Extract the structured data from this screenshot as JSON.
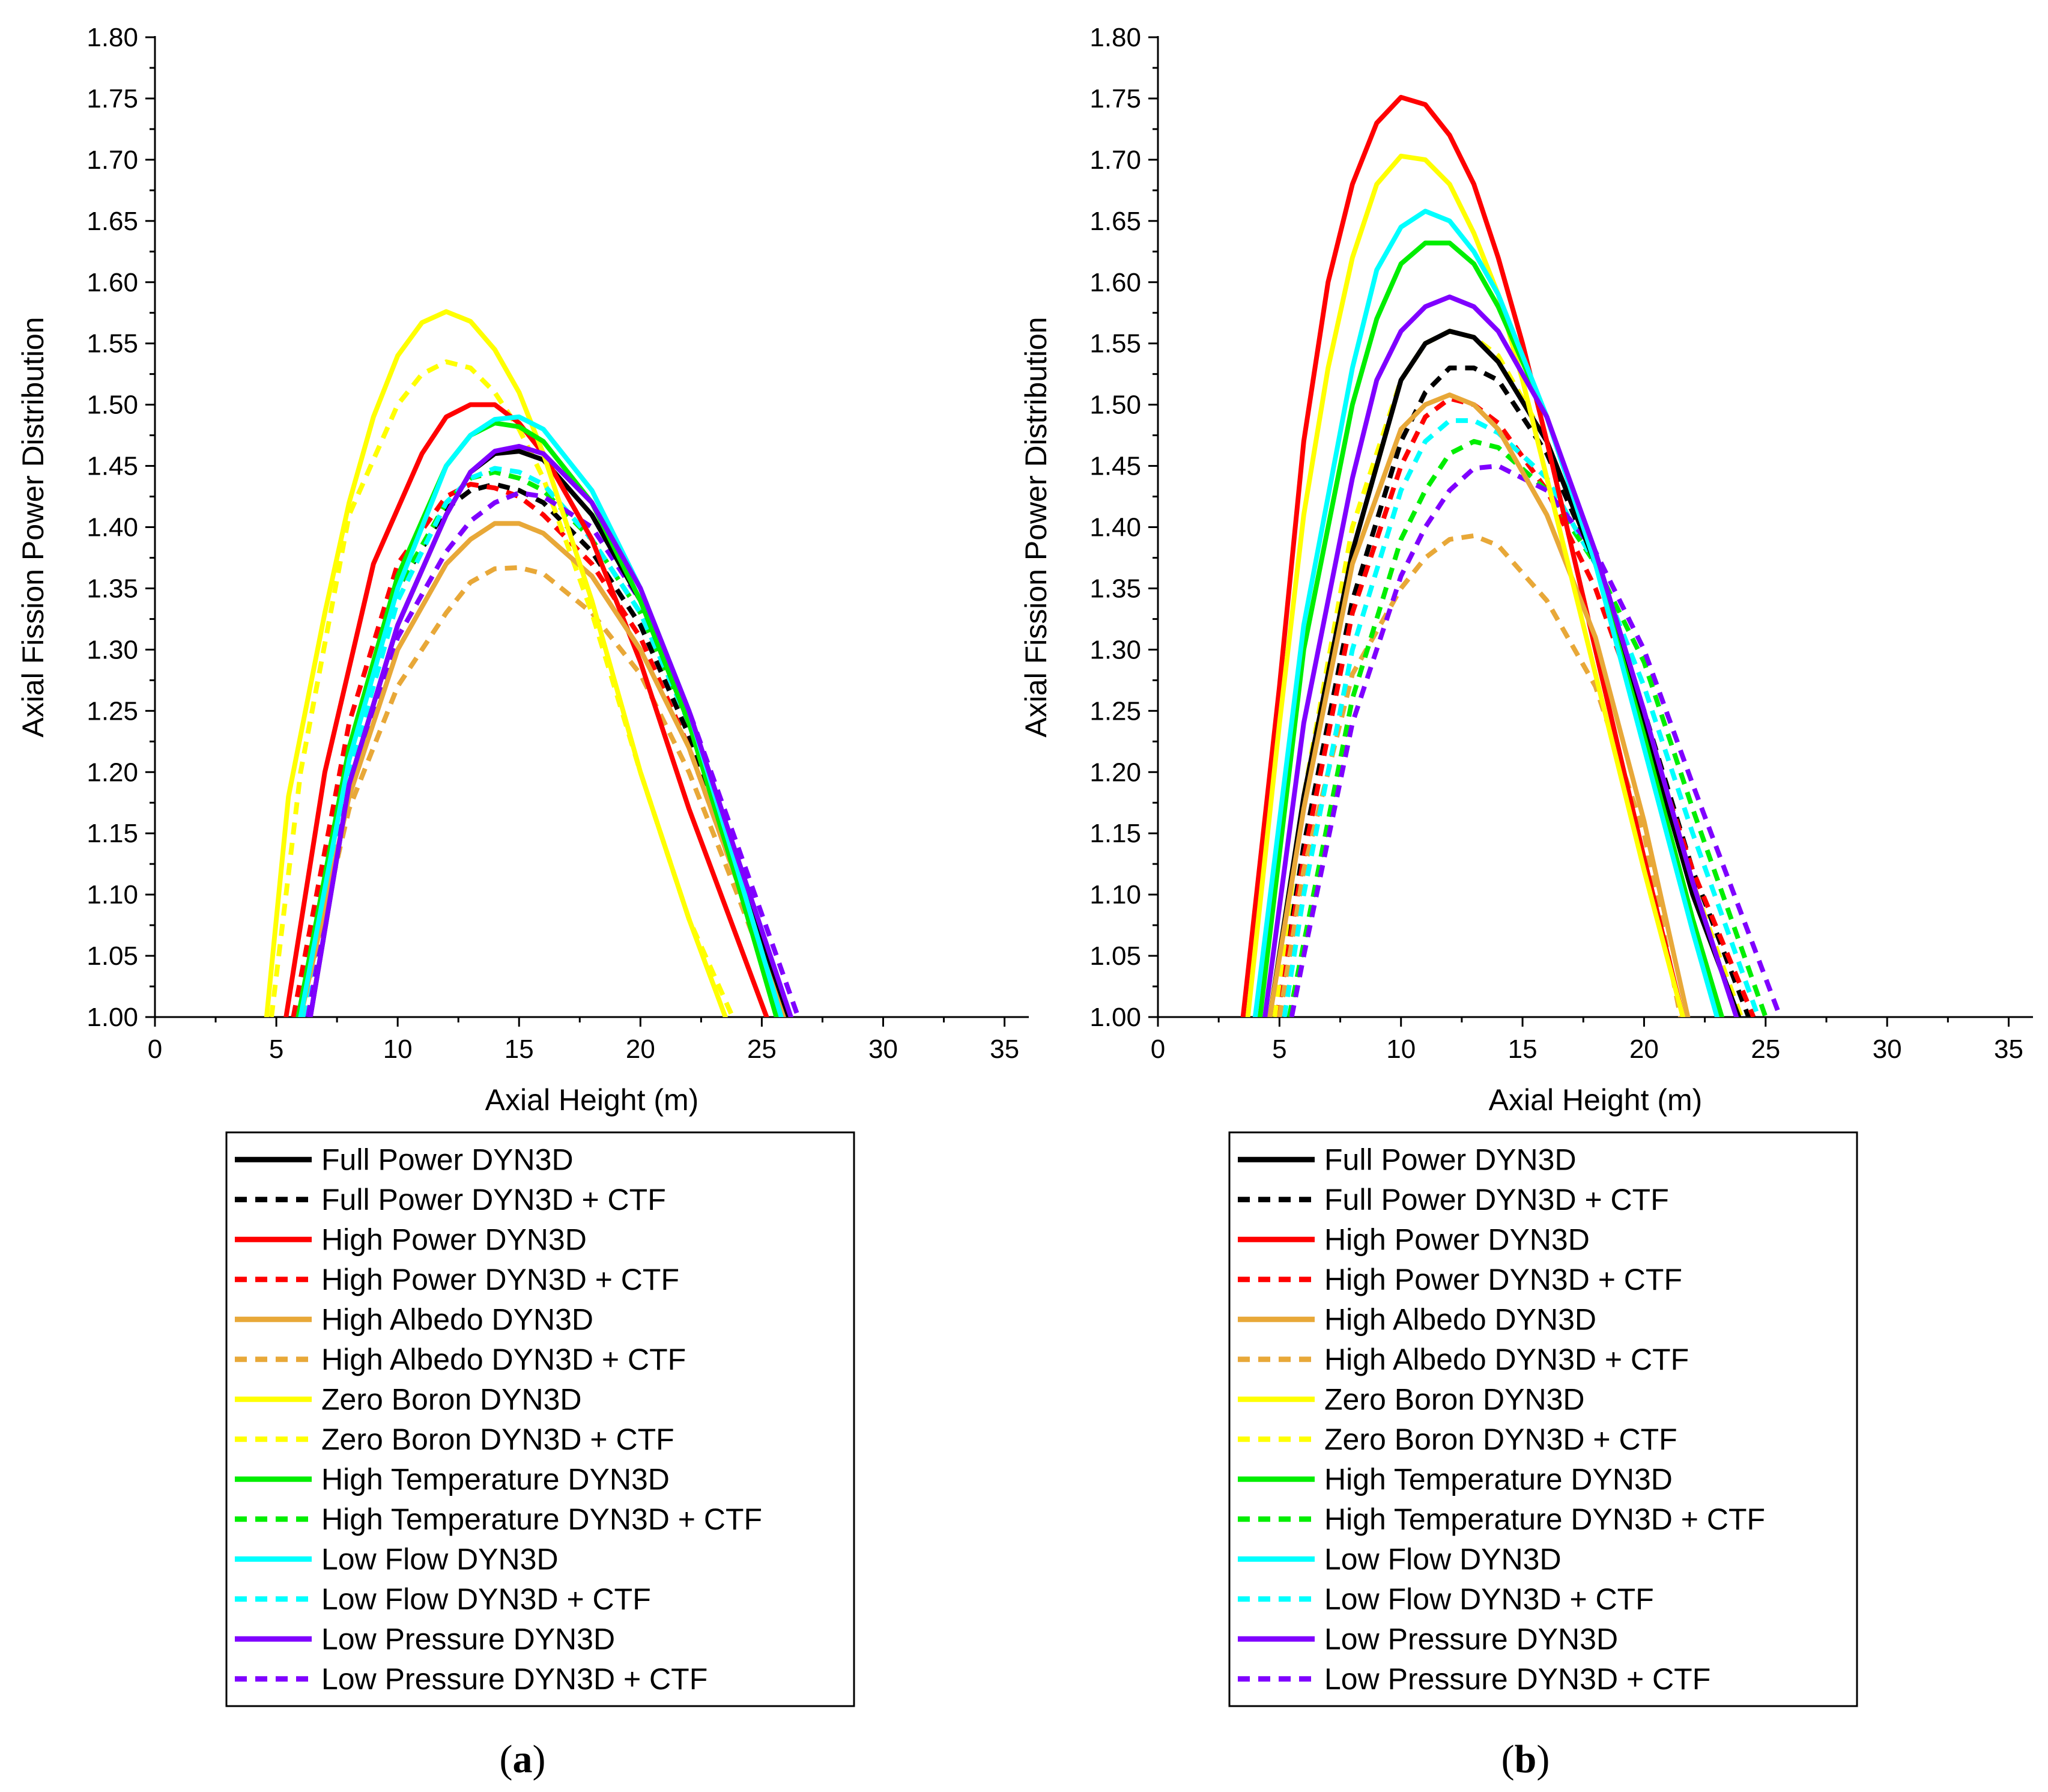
{
  "chart_data": [
    {
      "type": "line",
      "panel": "a",
      "caption_open": "(",
      "caption_letter": "a",
      "caption_close": ")",
      "xlabel": "Axial Height (m)",
      "ylabel": "Axial Fission Power Distribution",
      "xlim": [
        0,
        36
      ],
      "ylim": [
        1.0,
        1.8
      ],
      "xticks": [
        "0",
        "5",
        "10",
        "15",
        "20",
        "25",
        "30",
        "35"
      ],
      "yticks": [
        "1.00",
        "1.05",
        "1.10",
        "1.15",
        "1.20",
        "1.25",
        "1.30",
        "1.35",
        "1.40",
        "1.45",
        "1.50",
        "1.55",
        "1.60",
        "1.65",
        "1.70",
        "1.75",
        "1.80"
      ],
      "grid": false,
      "legend_position": "below",
      "series": [
        {
          "name": "Full Power DYN3D",
          "color": "#000000",
          "dash": false,
          "x": [
            6.4,
            8,
            10,
            12,
            13,
            14,
            15,
            16,
            18,
            20,
            22,
            24,
            26.1
          ],
          "y": [
            1.0,
            1.19,
            1.32,
            1.41,
            1.445,
            1.46,
            1.462,
            1.455,
            1.41,
            1.34,
            1.24,
            1.12,
            1.0
          ]
        },
        {
          "name": "Full Power DYN3D + CTF",
          "color": "#000000",
          "dash": true,
          "x": [
            6.0,
            8,
            10,
            12,
            13,
            14,
            15,
            16,
            18,
            20,
            22,
            24,
            26.0
          ],
          "y": [
            1.0,
            1.22,
            1.35,
            1.415,
            1.43,
            1.435,
            1.43,
            1.42,
            1.38,
            1.32,
            1.23,
            1.12,
            1.0
          ]
        },
        {
          "name": "High Power DYN3D",
          "color": "#ff0000",
          "dash": false,
          "x": [
            5.4,
            7,
            9,
            11,
            12,
            13,
            14,
            15,
            16,
            18,
            20,
            22,
            25.2
          ],
          "y": [
            1.0,
            1.2,
            1.37,
            1.46,
            1.49,
            1.5,
            1.5,
            1.485,
            1.46,
            1.39,
            1.29,
            1.17,
            1.0
          ]
        },
        {
          "name": "High Power DYN3D + CTF",
          "color": "#ff0000",
          "dash": true,
          "x": [
            5.7,
            8,
            10,
            12,
            13,
            14,
            15,
            16,
            18,
            20,
            22,
            24,
            25.9
          ],
          "y": [
            1.0,
            1.24,
            1.37,
            1.425,
            1.435,
            1.432,
            1.425,
            1.41,
            1.37,
            1.31,
            1.22,
            1.11,
            1.0
          ]
        },
        {
          "name": "High Albedo DYN3D",
          "color": "#e8a838",
          "dash": false,
          "x": [
            6.0,
            8,
            10,
            12,
            13,
            14,
            15,
            16,
            18,
            20,
            22,
            24,
            25.9
          ],
          "y": [
            1.0,
            1.18,
            1.3,
            1.37,
            1.39,
            1.403,
            1.403,
            1.395,
            1.36,
            1.3,
            1.22,
            1.11,
            1.0
          ]
        },
        {
          "name": "High Albedo DYN3D + CTF",
          "color": "#e8a838",
          "dash": true,
          "x": [
            6.0,
            8,
            10,
            12,
            13,
            14,
            15,
            16,
            18,
            20,
            22,
            24,
            25.9
          ],
          "y": [
            1.0,
            1.17,
            1.27,
            1.33,
            1.355,
            1.366,
            1.367,
            1.362,
            1.33,
            1.28,
            1.2,
            1.1,
            1.0
          ]
        },
        {
          "name": "Zero Boron DYN3D",
          "color": "#ffff00",
          "dash": false,
          "x": [
            4.6,
            5.5,
            7,
            8,
            9,
            10,
            11,
            12,
            13,
            14,
            15,
            16,
            18,
            20,
            22,
            23.5
          ],
          "y": [
            1.0,
            1.18,
            1.33,
            1.42,
            1.49,
            1.54,
            1.567,
            1.576,
            1.568,
            1.545,
            1.51,
            1.46,
            1.34,
            1.2,
            1.08,
            1.0
          ]
        },
        {
          "name": "Zero Boron DYN3D + CTF",
          "color": "#ffff00",
          "dash": true,
          "x": [
            4.8,
            6,
            8,
            10,
            11,
            12,
            13,
            14,
            15,
            16,
            18,
            20,
            22,
            23.8
          ],
          "y": [
            1.0,
            1.2,
            1.41,
            1.5,
            1.525,
            1.535,
            1.53,
            1.51,
            1.48,
            1.44,
            1.33,
            1.2,
            1.08,
            1.0
          ]
        },
        {
          "name": "High Temperature DYN3D",
          "color": "#00ee00",
          "dash": false,
          "x": [
            5.9,
            8,
            10,
            12,
            13,
            14,
            15,
            16,
            18,
            20,
            22,
            24,
            25.6
          ],
          "y": [
            1.0,
            1.22,
            1.36,
            1.45,
            1.475,
            1.485,
            1.482,
            1.47,
            1.42,
            1.34,
            1.24,
            1.11,
            1.0
          ]
        },
        {
          "name": "High Temperature DYN3D + CTF",
          "color": "#00ee00",
          "dash": true,
          "x": [
            6.0,
            8,
            10,
            12,
            13,
            14,
            15,
            16,
            18,
            20,
            22,
            24,
            26.0
          ],
          "y": [
            1.0,
            1.22,
            1.35,
            1.42,
            1.44,
            1.445,
            1.44,
            1.43,
            1.39,
            1.33,
            1.24,
            1.12,
            1.0
          ]
        },
        {
          "name": "Low Flow DYN3D",
          "color": "#00ffff",
          "dash": false,
          "x": [
            6.0,
            8,
            10,
            12,
            13,
            14,
            15,
            16,
            18,
            20,
            22,
            24,
            25.8
          ],
          "y": [
            1.0,
            1.21,
            1.35,
            1.45,
            1.475,
            1.488,
            1.49,
            1.48,
            1.43,
            1.35,
            1.25,
            1.12,
            1.0
          ]
        },
        {
          "name": "Low Flow DYN3D + CTF",
          "color": "#00ffff",
          "dash": true,
          "x": [
            6.1,
            8,
            10,
            12,
            13,
            14,
            15,
            16,
            18,
            20,
            22,
            24,
            26.2
          ],
          "y": [
            1.0,
            1.2,
            1.34,
            1.42,
            1.44,
            1.448,
            1.445,
            1.435,
            1.39,
            1.33,
            1.24,
            1.13,
            1.0
          ]
        },
        {
          "name": "Low Pressure DYN3D",
          "color": "#7f00ff",
          "dash": false,
          "x": [
            6.4,
            8,
            10,
            12,
            13,
            14,
            15,
            16,
            18,
            20,
            22,
            24,
            26.2
          ],
          "y": [
            1.0,
            1.19,
            1.32,
            1.41,
            1.445,
            1.462,
            1.466,
            1.46,
            1.42,
            1.35,
            1.25,
            1.13,
            1.0
          ]
        },
        {
          "name": "Low Pressure DYN3D + CTF",
          "color": "#7f00ff",
          "dash": true,
          "x": [
            6.3,
            8,
            10,
            12,
            13,
            14,
            15,
            16,
            18,
            20,
            22,
            24,
            26.5
          ],
          "y": [
            1.0,
            1.19,
            1.31,
            1.38,
            1.405,
            1.42,
            1.428,
            1.425,
            1.4,
            1.34,
            1.25,
            1.14,
            1.0
          ]
        }
      ]
    },
    {
      "type": "line",
      "panel": "b",
      "caption_open": "(",
      "caption_letter": "b",
      "caption_close": ")",
      "xlabel": "Axial Height (m)",
      "ylabel": "Axial Fission Power Distribution",
      "xlim": [
        0,
        36
      ],
      "ylim": [
        1.0,
        1.8
      ],
      "xticks": [
        "0",
        "5",
        "10",
        "15",
        "20",
        "25",
        "30",
        "35"
      ],
      "yticks": [
        "1.00",
        "1.05",
        "1.10",
        "1.15",
        "1.20",
        "1.25",
        "1.30",
        "1.35",
        "1.40",
        "1.45",
        "1.50",
        "1.55",
        "1.60",
        "1.65",
        "1.70",
        "1.75",
        "1.80"
      ],
      "grid": false,
      "legend_position": "below",
      "series": [
        {
          "name": "Full Power DYN3D",
          "color": "#000000",
          "dash": false,
          "x": [
            4.6,
            6,
            8,
            10,
            11,
            12,
            13,
            14,
            16,
            18,
            20,
            22,
            23.9
          ],
          "y": [
            1.0,
            1.18,
            1.38,
            1.52,
            1.55,
            1.56,
            1.555,
            1.535,
            1.47,
            1.37,
            1.24,
            1.1,
            1.0
          ]
        },
        {
          "name": "Full Power DYN3D + CTF",
          "color": "#000000",
          "dash": true,
          "x": [
            4.9,
            6,
            8,
            10,
            11,
            12,
            13,
            14,
            16,
            18,
            20,
            22,
            24.3
          ],
          "y": [
            1.0,
            1.14,
            1.34,
            1.47,
            1.51,
            1.53,
            1.53,
            1.52,
            1.46,
            1.37,
            1.25,
            1.12,
            1.0
          ]
        },
        {
          "name": "High Power DYN3D",
          "color": "#ff0000",
          "dash": false,
          "x": [
            3.5,
            5,
            6,
            7,
            8,
            9,
            10,
            11,
            12,
            13,
            14,
            15,
            16,
            18,
            20,
            21.6
          ],
          "y": [
            1.0,
            1.27,
            1.47,
            1.6,
            1.68,
            1.73,
            1.751,
            1.745,
            1.72,
            1.68,
            1.62,
            1.55,
            1.47,
            1.3,
            1.13,
            1.0
          ]
        },
        {
          "name": "High Power DYN3D + CTF",
          "color": "#ff0000",
          "dash": true,
          "x": [
            4.9,
            6,
            8,
            10,
            11,
            12,
            13,
            14,
            16,
            18,
            20,
            22,
            24.5
          ],
          "y": [
            1.0,
            1.13,
            1.33,
            1.45,
            1.49,
            1.505,
            1.5,
            1.485,
            1.43,
            1.35,
            1.24,
            1.12,
            1.0
          ]
        },
        {
          "name": "High Albedo DYN3D",
          "color": "#e8a838",
          "dash": false,
          "x": [
            4.6,
            6,
            8,
            10,
            11,
            12,
            13,
            14,
            16,
            18,
            20,
            21.8
          ],
          "y": [
            1.0,
            1.17,
            1.37,
            1.48,
            1.5,
            1.508,
            1.5,
            1.48,
            1.41,
            1.31,
            1.16,
            1.0
          ]
        },
        {
          "name": "High Albedo DYN3D + CTF",
          "color": "#e8a838",
          "dash": true,
          "x": [
            5.0,
            6,
            8,
            10,
            11,
            12,
            13,
            14,
            16,
            18,
            20,
            21.5
          ],
          "y": [
            1.0,
            1.12,
            1.28,
            1.35,
            1.375,
            1.39,
            1.393,
            1.385,
            1.34,
            1.27,
            1.15,
            1.0
          ]
        },
        {
          "name": "Zero Boron DYN3D",
          "color": "#ffff00",
          "dash": false,
          "x": [
            3.7,
            5,
            6,
            7,
            8,
            9,
            10,
            11,
            12,
            13,
            14,
            15,
            16,
            18,
            20,
            21.6
          ],
          "y": [
            1.0,
            1.24,
            1.41,
            1.53,
            1.62,
            1.68,
            1.703,
            1.7,
            1.68,
            1.64,
            1.59,
            1.52,
            1.44,
            1.28,
            1.12,
            1.0
          ]
        },
        {
          "name": "Zero Boron DYN3D + CTF",
          "color": "#ffff00",
          "dash": true,
          "x": [
            4.8,
            6,
            8,
            10,
            11,
            12,
            13,
            14,
            16,
            18,
            20,
            22,
            24.0
          ],
          "y": [
            1.0,
            1.18,
            1.4,
            1.52,
            1.55,
            1.56,
            1.555,
            1.54,
            1.47,
            1.37,
            1.24,
            1.11,
            1.0
          ]
        },
        {
          "name": "High Temperature DYN3D",
          "color": "#00ee00",
          "dash": false,
          "x": [
            4.2,
            6,
            8,
            9,
            10,
            11,
            12,
            13,
            14,
            16,
            18,
            20,
            22,
            23.2
          ],
          "y": [
            1.0,
            1.3,
            1.5,
            1.57,
            1.615,
            1.632,
            1.632,
            1.615,
            1.58,
            1.49,
            1.37,
            1.23,
            1.08,
            1.0
          ]
        },
        {
          "name": "High Temperature DYN3D + CTF",
          "color": "#00ee00",
          "dash": true,
          "x": [
            5.4,
            6,
            8,
            10,
            11,
            12,
            13,
            14,
            16,
            18,
            20,
            22,
            25.0
          ],
          "y": [
            1.0,
            1.06,
            1.26,
            1.39,
            1.43,
            1.46,
            1.47,
            1.465,
            1.43,
            1.37,
            1.29,
            1.17,
            1.0
          ]
        },
        {
          "name": "Low Flow DYN3D",
          "color": "#00ffff",
          "dash": false,
          "x": [
            4.0,
            6,
            8,
            9,
            10,
            11,
            12,
            13,
            14,
            16,
            18,
            20,
            22,
            23.0
          ],
          "y": [
            1.0,
            1.32,
            1.53,
            1.61,
            1.645,
            1.658,
            1.65,
            1.625,
            1.59,
            1.49,
            1.37,
            1.22,
            1.07,
            1.0
          ]
        },
        {
          "name": "Low Flow DYN3D + CTF",
          "color": "#00ffff",
          "dash": true,
          "x": [
            5.2,
            6,
            8,
            10,
            11,
            12,
            13,
            14,
            16,
            18,
            20,
            22,
            24.7
          ],
          "y": [
            1.0,
            1.1,
            1.3,
            1.43,
            1.47,
            1.487,
            1.487,
            1.477,
            1.44,
            1.37,
            1.27,
            1.15,
            1.0
          ]
        },
        {
          "name": "Low Pressure DYN3D",
          "color": "#7f00ff",
          "dash": false,
          "x": [
            4.4,
            6,
            8,
            9,
            10,
            11,
            12,
            13,
            14,
            16,
            18,
            20,
            22,
            23.8
          ],
          "y": [
            1.0,
            1.24,
            1.44,
            1.52,
            1.56,
            1.58,
            1.588,
            1.58,
            1.56,
            1.49,
            1.38,
            1.25,
            1.11,
            1.0
          ]
        },
        {
          "name": "Low Pressure DYN3D + CTF",
          "color": "#7f00ff",
          "dash": true,
          "x": [
            5.5,
            6,
            8,
            10,
            11,
            12,
            13,
            14,
            16,
            18,
            20,
            22,
            25.6
          ],
          "y": [
            1.0,
            1.05,
            1.24,
            1.36,
            1.4,
            1.43,
            1.448,
            1.45,
            1.43,
            1.38,
            1.3,
            1.19,
            1.0
          ]
        }
      ]
    }
  ]
}
